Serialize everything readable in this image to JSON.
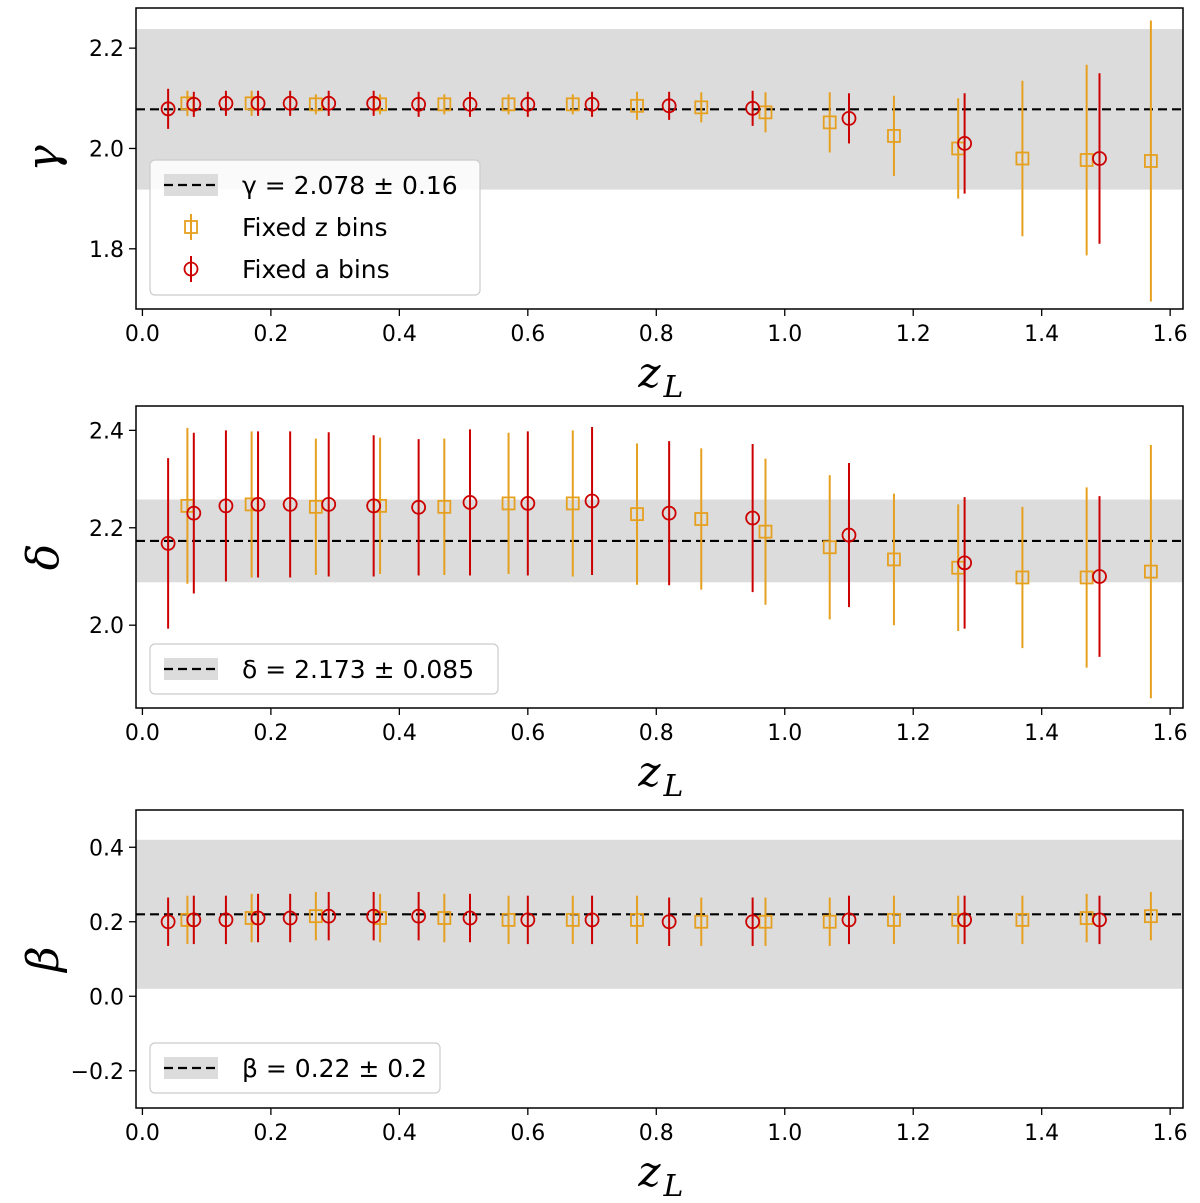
{
  "colors": {
    "z_bins": "#e6a020",
    "a_bins": "#cc0000",
    "band": "#dcdcdc",
    "ref_line": "#000000"
  },
  "chart_data": [
    {
      "type": "scatter",
      "param": "gamma",
      "ylabel": "γ",
      "xlabel_main": "z",
      "xlabel_sub": "L",
      "xlim": [
        -0.01,
        1.62
      ],
      "ylim": [
        1.68,
        2.28
      ],
      "xticks": [
        "0.0",
        "0.2",
        "0.4",
        "0.6",
        "0.8",
        "1.0",
        "1.2",
        "1.4",
        "1.6"
      ],
      "yticks": [
        "1.8",
        "2.0",
        "2.2"
      ],
      "ref_value": 2.078,
      "band": [
        1.918,
        2.238
      ],
      "legend_placement": "lower-left",
      "legend": [
        {
          "kind": "ref",
          "text": "γ = 2.078 ± 0.16"
        },
        {
          "kind": "z",
          "text": "Fixed z bins"
        },
        {
          "kind": "a",
          "text": "Fixed a bins"
        }
      ],
      "series": [
        {
          "name": "Fixed z bins",
          "marker": "square",
          "x": [
            0.07,
            0.17,
            0.27,
            0.37,
            0.47,
            0.57,
            0.67,
            0.77,
            0.87,
            0.97,
            1.07,
            1.17,
            1.27,
            1.37,
            1.47,
            1.57
          ],
          "y": [
            2.09,
            2.09,
            2.088,
            2.088,
            2.088,
            2.088,
            2.088,
            2.085,
            2.082,
            2.072,
            2.052,
            2.025,
            2.0,
            1.98,
            1.977,
            1.975
          ],
          "err": [
            0.025,
            0.025,
            0.02,
            0.02,
            0.02,
            0.02,
            0.02,
            0.028,
            0.03,
            0.04,
            0.06,
            0.08,
            0.1,
            0.155,
            0.19,
            0.28
          ]
        },
        {
          "name": "Fixed a bins",
          "marker": "circle",
          "x": [
            0.04,
            0.08,
            0.13,
            0.18,
            0.23,
            0.29,
            0.36,
            0.43,
            0.51,
            0.6,
            0.7,
            0.82,
            0.95,
            1.1,
            1.28,
            1.49
          ],
          "y": [
            2.079,
            2.088,
            2.09,
            2.09,
            2.09,
            2.09,
            2.09,
            2.088,
            2.088,
            2.088,
            2.088,
            2.085,
            2.08,
            2.06,
            2.01,
            1.98
          ],
          "err": [
            0.04,
            0.025,
            0.025,
            0.025,
            0.025,
            0.025,
            0.025,
            0.025,
            0.025,
            0.025,
            0.025,
            0.028,
            0.035,
            0.05,
            0.1,
            0.17
          ]
        }
      ]
    },
    {
      "type": "scatter",
      "param": "delta",
      "ylabel": "δ",
      "xlabel_main": "z",
      "xlabel_sub": "L",
      "xlim": [
        -0.01,
        1.62
      ],
      "ylim": [
        1.83,
        2.45
      ],
      "xticks": [
        "0.0",
        "0.2",
        "0.4",
        "0.6",
        "0.8",
        "1.0",
        "1.2",
        "1.4",
        "1.6"
      ],
      "yticks": [
        "2.0",
        "2.2",
        "2.4"
      ],
      "ref_value": 2.173,
      "band": [
        2.088,
        2.258
      ],
      "legend_placement": "lower-left",
      "legend": [
        {
          "kind": "ref",
          "text": "δ = 2.173 ± 0.085"
        }
      ],
      "series": [
        {
          "name": "Fixed z bins",
          "marker": "square",
          "x": [
            0.07,
            0.17,
            0.27,
            0.37,
            0.47,
            0.57,
            0.67,
            0.77,
            0.87,
            0.97,
            1.07,
            1.17,
            1.27,
            1.37,
            1.47,
            1.57
          ],
          "y": [
            2.245,
            2.248,
            2.243,
            2.245,
            2.243,
            2.25,
            2.25,
            2.228,
            2.218,
            2.192,
            2.16,
            2.135,
            2.118,
            2.098,
            2.098,
            2.11
          ],
          "err": [
            0.16,
            0.15,
            0.14,
            0.14,
            0.14,
            0.145,
            0.15,
            0.145,
            0.145,
            0.15,
            0.148,
            0.135,
            0.13,
            0.145,
            0.185,
            0.26
          ]
        },
        {
          "name": "Fixed a bins",
          "marker": "circle",
          "x": [
            0.04,
            0.08,
            0.13,
            0.18,
            0.23,
            0.29,
            0.36,
            0.43,
            0.51,
            0.6,
            0.7,
            0.82,
            0.95,
            1.1,
            1.28,
            1.49
          ],
          "y": [
            2.168,
            2.23,
            2.245,
            2.248,
            2.248,
            2.248,
            2.245,
            2.242,
            2.252,
            2.25,
            2.255,
            2.23,
            2.22,
            2.185,
            2.128,
            2.1
          ],
          "err": [
            0.175,
            0.165,
            0.155,
            0.15,
            0.15,
            0.148,
            0.145,
            0.14,
            0.15,
            0.148,
            0.152,
            0.148,
            0.152,
            0.148,
            0.135,
            0.165
          ]
        }
      ]
    },
    {
      "type": "scatter",
      "param": "beta",
      "ylabel": "β",
      "xlabel_main": "z",
      "xlabel_sub": "L",
      "xlim": [
        -0.01,
        1.62
      ],
      "ylim": [
        -0.3,
        0.5
      ],
      "xticks": [
        "0.0",
        "0.2",
        "0.4",
        "0.6",
        "0.8",
        "1.0",
        "1.2",
        "1.4",
        "1.6"
      ],
      "yticks": [
        "−0.2",
        "0.0",
        "0.2",
        "0.4"
      ],
      "ref_value": 0.22,
      "band": [
        0.02,
        0.42
      ],
      "legend_placement": "lower-left",
      "legend": [
        {
          "kind": "ref",
          "text": "β = 0.22 ± 0.2"
        }
      ],
      "series": [
        {
          "name": "Fixed z bins",
          "marker": "square",
          "x": [
            0.07,
            0.17,
            0.27,
            0.37,
            0.47,
            0.57,
            0.67,
            0.77,
            0.87,
            0.97,
            1.07,
            1.17,
            1.27,
            1.37,
            1.47,
            1.57
          ],
          "y": [
            0.205,
            0.21,
            0.215,
            0.21,
            0.21,
            0.205,
            0.205,
            0.205,
            0.2,
            0.2,
            0.2,
            0.205,
            0.205,
            0.205,
            0.21,
            0.215
          ],
          "err": [
            0.065,
            0.065,
            0.065,
            0.065,
            0.065,
            0.065,
            0.065,
            0.065,
            0.065,
            0.065,
            0.065,
            0.065,
            0.065,
            0.065,
            0.065,
            0.065
          ]
        },
        {
          "name": "Fixed a bins",
          "marker": "circle",
          "x": [
            0.04,
            0.08,
            0.13,
            0.18,
            0.23,
            0.29,
            0.36,
            0.43,
            0.51,
            0.6,
            0.7,
            0.82,
            0.95,
            1.1,
            1.28,
            1.49
          ],
          "y": [
            0.2,
            0.205,
            0.205,
            0.21,
            0.21,
            0.215,
            0.215,
            0.215,
            0.21,
            0.205,
            0.205,
            0.2,
            0.2,
            0.205,
            0.205,
            0.205
          ],
          "err": [
            0.065,
            0.065,
            0.065,
            0.065,
            0.065,
            0.065,
            0.065,
            0.065,
            0.065,
            0.065,
            0.065,
            0.065,
            0.065,
            0.065,
            0.065,
            0.065
          ]
        }
      ]
    }
  ]
}
